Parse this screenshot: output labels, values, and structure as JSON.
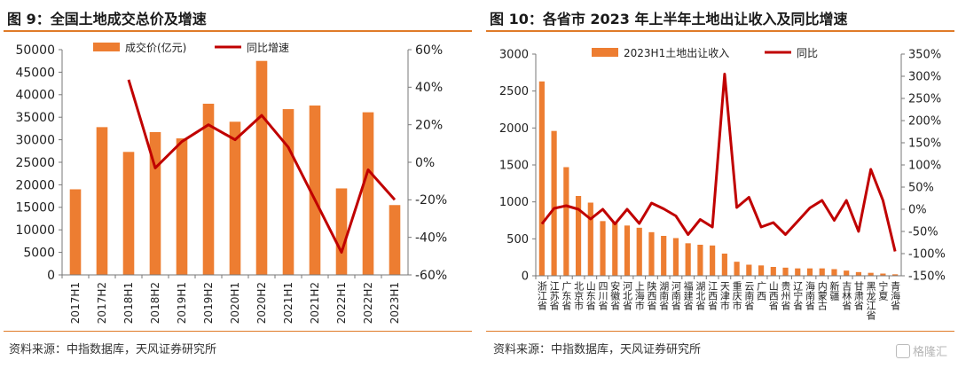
{
  "chart_data": [
    {
      "type": "bar",
      "title": "图 9：全国土地成交总价及增速",
      "categories": [
        "2017H1",
        "2017H2",
        "2018H1",
        "2018H2",
        "2019H1",
        "2019H2",
        "2020H1",
        "2020H2",
        "2021H1",
        "2021H2",
        "2022H1",
        "2022H2",
        "2023H1"
      ],
      "series": [
        {
          "name": "成交价(亿元)",
          "type": "bar",
          "axis": "left",
          "color": "#ed7d31",
          "values": [
            19000,
            32800,
            27300,
            31700,
            30300,
            38000,
            34000,
            47500,
            36800,
            37600,
            19200,
            36100,
            15500
          ]
        },
        {
          "name": "同比增速",
          "type": "line",
          "axis": "right",
          "color": "#c00000",
          "values": [
            null,
            null,
            44,
            -3,
            11,
            20,
            12,
            25,
            8,
            -20,
            -48,
            -4,
            -20
          ]
        }
      ],
      "ylim": [
        0,
        50000
      ],
      "yticks": [
        "0",
        "5000",
        "10000",
        "15000",
        "20000",
        "25000",
        "30000",
        "35000",
        "40000",
        "45000",
        "50000"
      ],
      "y2lim": [
        -60,
        60
      ],
      "y2ticks": [
        "-60%",
        "-40%",
        "-20%",
        "0%",
        "20%",
        "40%",
        "60%"
      ],
      "legend": "top",
      "grid": false,
      "source": "资料来源：中指数据库，天风证券研究所"
    },
    {
      "type": "bar",
      "title": "图 10：各省市 2023 年上半年土地出让收入及同比增速",
      "categories": [
        "浙江省",
        "江苏省",
        "广东省",
        "北京市",
        "山东省",
        "四川省",
        "安徽省",
        "河北省",
        "上海市",
        "陕西省",
        "湖南省",
        "河南省",
        "福建省",
        "湖北省",
        "江西省",
        "天津市",
        "重庆市",
        "云南省",
        "广西",
        "山西省",
        "贵州省",
        "辽宁省",
        "海南省",
        "内蒙古",
        "新疆",
        "吉林省",
        "甘肃省",
        "黑龙江省",
        "宁夏",
        "青海省"
      ],
      "series": [
        {
          "name": "2023H1土地出让收入",
          "type": "bar",
          "axis": "left",
          "color": "#ed7d31",
          "values": [
            2630,
            1960,
            1470,
            1080,
            990,
            740,
            720,
            680,
            650,
            590,
            540,
            510,
            440,
            420,
            410,
            300,
            190,
            150,
            140,
            120,
            110,
            100,
            100,
            100,
            90,
            70,
            50,
            40,
            30,
            20
          ]
        },
        {
          "name": "同比",
          "type": "line",
          "axis": "right",
          "color": "#c00000",
          "values": [
            -33,
            2,
            8,
            0,
            -22,
            0,
            -33,
            0,
            -32,
            14,
            1,
            -15,
            -57,
            -23,
            -40,
            305,
            4,
            27,
            -40,
            -30,
            -57,
            -27,
            3,
            20,
            -25,
            20,
            -50,
            90,
            20,
            -95
          ]
        }
      ],
      "ylim": [
        0,
        3000
      ],
      "yticks": [
        "0",
        "500",
        "1000",
        "1500",
        "2000",
        "2500",
        "3000"
      ],
      "y2lim": [
        -150,
        350
      ],
      "y2ticks": [
        "-150%",
        "-100%",
        "-50%",
        "0%",
        "50%",
        "100%",
        "150%",
        "200%",
        "250%",
        "300%",
        "350%"
      ],
      "legend": "top",
      "grid": false,
      "source": "资料来源：中指数据库，天风证券研究所"
    }
  ],
  "watermark": "格隆汇"
}
